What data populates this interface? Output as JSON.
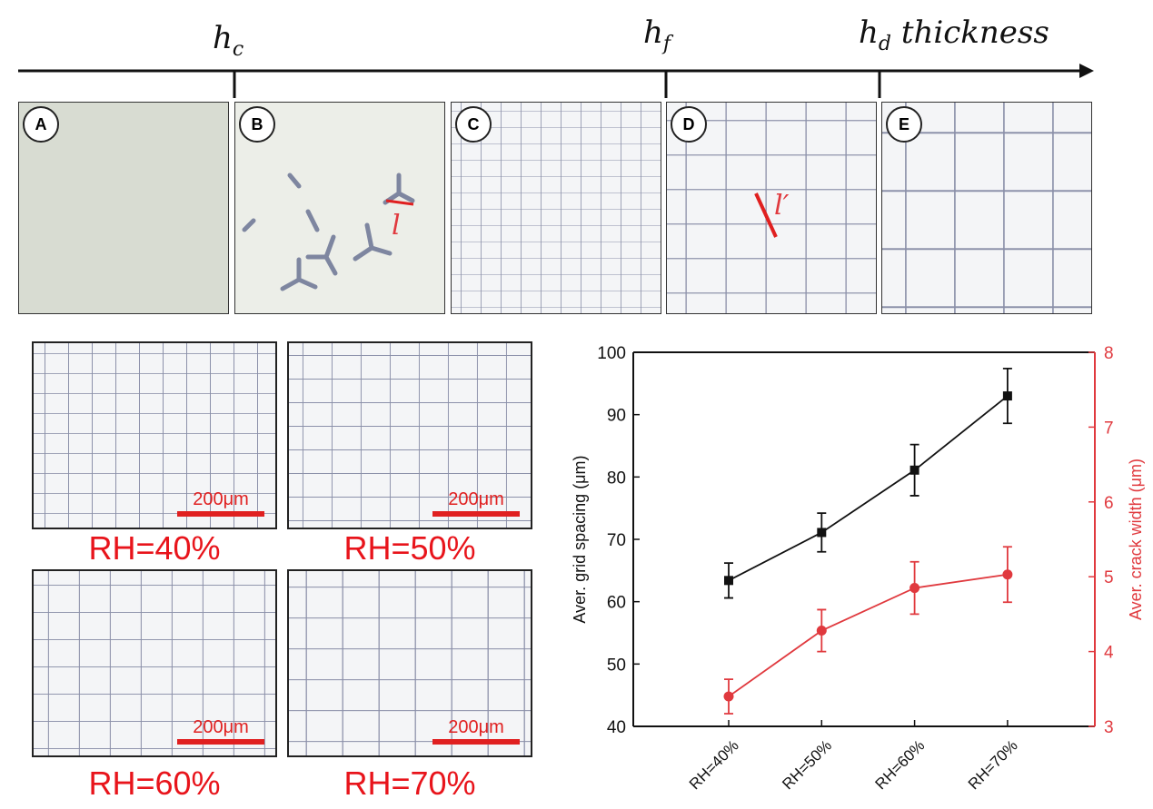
{
  "thickness_axis": {
    "h_c": "h",
    "h_c_sub": "c",
    "h_f": "h",
    "h_f_sub": "f",
    "h_d": "h",
    "h_d_sub": "d",
    "thickness_label": "thickness"
  },
  "panels": [
    {
      "label": "A"
    },
    {
      "label": "B",
      "annotation": "l"
    },
    {
      "label": "C"
    },
    {
      "label": "D",
      "annotation": "l′"
    },
    {
      "label": "E"
    }
  ],
  "micrographs": [
    {
      "condition": "RH=40%",
      "scale_bar": "200μm"
    },
    {
      "condition": "RH=50%",
      "scale_bar": "200μm"
    },
    {
      "condition": "RH=60%",
      "scale_bar": "200μm"
    },
    {
      "condition": "RH=70%",
      "scale_bar": "200μm"
    }
  ],
  "colors": {
    "black_series": "#111111",
    "red_series": "#e0393e",
    "label_red": "#e8141b"
  },
  "chart_data": {
    "type": "line",
    "categories": [
      "RH=40%",
      "RH=50%",
      "RH=60%",
      "RH=70%"
    ],
    "ylabel": "Aver. grid spacing (μm)",
    "y2label": "Aver. crack width (μm)",
    "ylim": [
      40,
      100
    ],
    "yticks": [
      "40",
      "50",
      "60",
      "70",
      "80",
      "90",
      "100"
    ],
    "y2lim": [
      3,
      8
    ],
    "y2ticks": [
      "3",
      "4",
      "5",
      "6",
      "7",
      "8"
    ],
    "series": [
      {
        "name": "Aver. grid spacing",
        "axis": "left",
        "marker": "square",
        "values": [
          63.4,
          71.1,
          81.1,
          93.0
        ],
        "errors": [
          2.8,
          3.1,
          4.1,
          4.4
        ]
      },
      {
        "name": "Aver. crack width",
        "axis": "right",
        "marker": "circle",
        "values": [
          3.4,
          4.28,
          4.85,
          5.03
        ],
        "errors": [
          0.23,
          0.28,
          0.35,
          0.37
        ]
      }
    ]
  }
}
